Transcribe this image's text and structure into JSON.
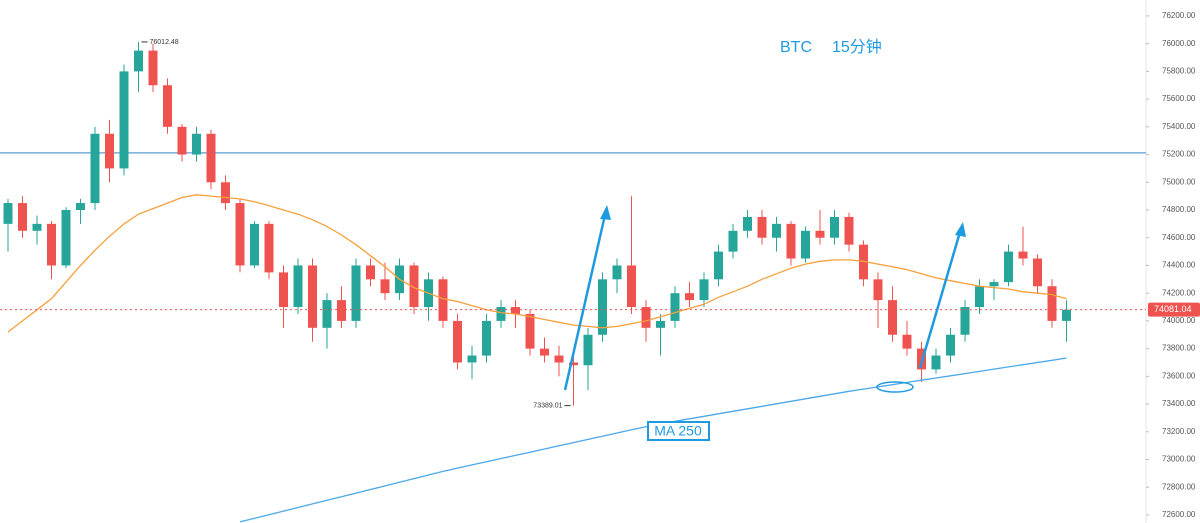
{
  "chart_data": {
    "type": "candlestick",
    "title": "BTC",
    "subtitle": "15分钟",
    "up_color": "#26a69a",
    "down_color": "#ef5350",
    "ylim": [
      72542,
      76315
    ],
    "yticks": [
      {
        "value": 72600,
        "label": "72600.00"
      },
      {
        "value": 72800,
        "label": "72800.00"
      },
      {
        "value": 73000,
        "label": "73000.00"
      },
      {
        "value": 73200,
        "label": "73200.00"
      },
      {
        "value": 73400,
        "label": "73400.00"
      },
      {
        "value": 73600,
        "label": "73600.00"
      },
      {
        "value": 73800,
        "label": "73800.00"
      },
      {
        "value": 74000,
        "label": "74000.00"
      },
      {
        "value": 74200,
        "label": "74200.00"
      },
      {
        "value": 74400,
        "label": "74400.00"
      },
      {
        "value": 74600,
        "label": "74600.00"
      },
      {
        "value": 74800,
        "label": "74800.00"
      },
      {
        "value": 75000,
        "label": "75000.00"
      },
      {
        "value": 75200,
        "label": "75200.00"
      },
      {
        "value": 75400,
        "label": "75400.00"
      },
      {
        "value": 75600,
        "label": "75600.00"
      },
      {
        "value": 75800,
        "label": "75800.00"
      },
      {
        "value": 76000,
        "label": "76000.00"
      },
      {
        "value": 76200,
        "label": "76200.00"
      }
    ],
    "hline": {
      "value": 75212,
      "color": "#5b9bd5"
    },
    "high_index": 9,
    "low_index": 39,
    "candles": [
      [
        74700,
        74880,
        74500,
        74850
      ],
      [
        74850,
        74900,
        74600,
        74650
      ],
      [
        74650,
        74760,
        74550,
        74700
      ],
      [
        74700,
        74720,
        74300,
        74400
      ],
      [
        74400,
        74820,
        74380,
        74800
      ],
      [
        74800,
        74880,
        74700,
        74850
      ],
      [
        74850,
        75400,
        74800,
        75350
      ],
      [
        75350,
        75450,
        75000,
        75100
      ],
      [
        75100,
        75850,
        75050,
        75800
      ],
      [
        75800,
        76012.48,
        75650,
        75950
      ],
      [
        75950,
        76000,
        75650,
        75700
      ],
      [
        75700,
        75750,
        75350,
        75400
      ],
      [
        75400,
        75420,
        75150,
        75200
      ],
      [
        75200,
        75400,
        75150,
        75350
      ],
      [
        75350,
        75380,
        74950,
        75000
      ],
      [
        75000,
        75050,
        74800,
        74850
      ],
      [
        74850,
        74880,
        74350,
        74400
      ],
      [
        74400,
        74720,
        74380,
        74700
      ],
      [
        74700,
        74720,
        74300,
        74350
      ],
      [
        74350,
        74400,
        73950,
        74100
      ],
      [
        74100,
        74450,
        74050,
        74400
      ],
      [
        74400,
        74450,
        73850,
        73950
      ],
      [
        73950,
        74200,
        73800,
        74150
      ],
      [
        74150,
        74250,
        73950,
        74000
      ],
      [
        74000,
        74450,
        73950,
        74400
      ],
      [
        74400,
        74450,
        74250,
        74300
      ],
      [
        74300,
        74420,
        74150,
        74200
      ],
      [
        74200,
        74450,
        74150,
        74400
      ],
      [
        74400,
        74420,
        74050,
        74100
      ],
      [
        74100,
        74350,
        74000,
        74300
      ],
      [
        74300,
        74320,
        73950,
        74000
      ],
      [
        74000,
        74050,
        73650,
        73700
      ],
      [
        73700,
        73820,
        73580,
        73750
      ],
      [
        73750,
        74050,
        73700,
        74000
      ],
      [
        74000,
        74150,
        73950,
        74100
      ],
      [
        74100,
        74150,
        73950,
        74050
      ],
      [
        74050,
        74080,
        73750,
        73800
      ],
      [
        73800,
        73880,
        73700,
        73750
      ],
      [
        73750,
        73820,
        73600,
        73700
      ],
      [
        73700,
        73750,
        73389.01,
        73680
      ],
      [
        73680,
        73950,
        73500,
        73900
      ],
      [
        73900,
        74350,
        73850,
        74300
      ],
      [
        74300,
        74450,
        74200,
        74400
      ],
      [
        74400,
        74900,
        74050,
        74100
      ],
      [
        74100,
        74150,
        73850,
        73950
      ],
      [
        73950,
        74050,
        73750,
        74000
      ],
      [
        74000,
        74250,
        73950,
        74200
      ],
      [
        74200,
        74280,
        74100,
        74150
      ],
      [
        74150,
        74350,
        74100,
        74300
      ],
      [
        74300,
        74550,
        74250,
        74500
      ],
      [
        74500,
        74700,
        74450,
        74650
      ],
      [
        74650,
        74800,
        74600,
        74750
      ],
      [
        74750,
        74800,
        74550,
        74600
      ],
      [
        74600,
        74750,
        74500,
        74700
      ],
      [
        74700,
        74720,
        74400,
        74450
      ],
      [
        74450,
        74680,
        74420,
        74650
      ],
      [
        74650,
        74800,
        74550,
        74600
      ],
      [
        74600,
        74800,
        74550,
        74750
      ],
      [
        74750,
        74780,
        74500,
        74550
      ],
      [
        74550,
        74580,
        74250,
        74300
      ],
      [
        74300,
        74350,
        73950,
        74150
      ],
      [
        74150,
        74250,
        73850,
        73900
      ],
      [
        73900,
        74000,
        73750,
        73800
      ],
      [
        73800,
        73850,
        73560,
        73650
      ],
      [
        73650,
        73800,
        73620,
        73750
      ],
      [
        73750,
        73950,
        73700,
        73900
      ],
      [
        73900,
        74150,
        73850,
        74100
      ],
      [
        74100,
        74300,
        74050,
        74250
      ],
      [
        74250,
        74300,
        74150,
        74280
      ],
      [
        74280,
        74550,
        74250,
        74500
      ],
      [
        74500,
        74680,
        74400,
        74450
      ],
      [
        74450,
        74480,
        74200,
        74250
      ],
      [
        74250,
        74300,
        73950,
        74000
      ],
      [
        74000,
        74150,
        73850,
        74081.04
      ]
    ],
    "series": [
      {
        "color": "#f5a03a",
        "values": [
          73920,
          74000,
          74080,
          74160,
          74280,
          74400,
          74510,
          74610,
          74700,
          74770,
          74810,
          74850,
          74890,
          74910,
          74900,
          74890,
          74880,
          74860,
          74830,
          74800,
          74770,
          74730,
          74680,
          74620,
          74550,
          74470,
          74390,
          74300,
          74240,
          74200,
          74160,
          74140,
          74110,
          74080,
          74060,
          74050,
          74030,
          74010,
          73990,
          73970,
          73960,
          73950,
          73960,
          73980,
          74000,
          74030,
          74060,
          74090,
          74120,
          74170,
          74210,
          74250,
          74300,
          74340,
          74380,
          74410,
          74430,
          74440,
          74440,
          74430,
          74410,
          74390,
          74370,
          74340,
          74310,
          74290,
          74270,
          74250,
          74240,
          74230,
          74210,
          74200,
          74190,
          74160
        ]
      },
      {
        "name": "MA 250",
        "color": "#4aa8ea",
        "values": [
          null,
          null,
          null,
          null,
          null,
          null,
          null,
          null,
          null,
          null,
          null,
          null,
          null,
          null,
          null,
          null,
          72550,
          72576,
          72602,
          72628,
          72654,
          72680,
          72706,
          72732,
          72758,
          72784,
          72810,
          72836,
          72862,
          72888,
          72914,
          72938,
          72961,
          72984,
          73007,
          73030,
          73053,
          73076,
          73099,
          73122,
          73145,
          73168,
          73191,
          73214,
          73237,
          73258,
          73276,
          73294,
          73312,
          73330,
          73348,
          73366,
          73384,
          73402,
          73420,
          73438,
          73456,
          73474,
          73492,
          73508,
          73524,
          73540,
          73556,
          73572,
          73588,
          73604,
          73620,
          73636,
          73652,
          73668,
          73684,
          73700,
          73716,
          73732
        ]
      }
    ]
  }
}
